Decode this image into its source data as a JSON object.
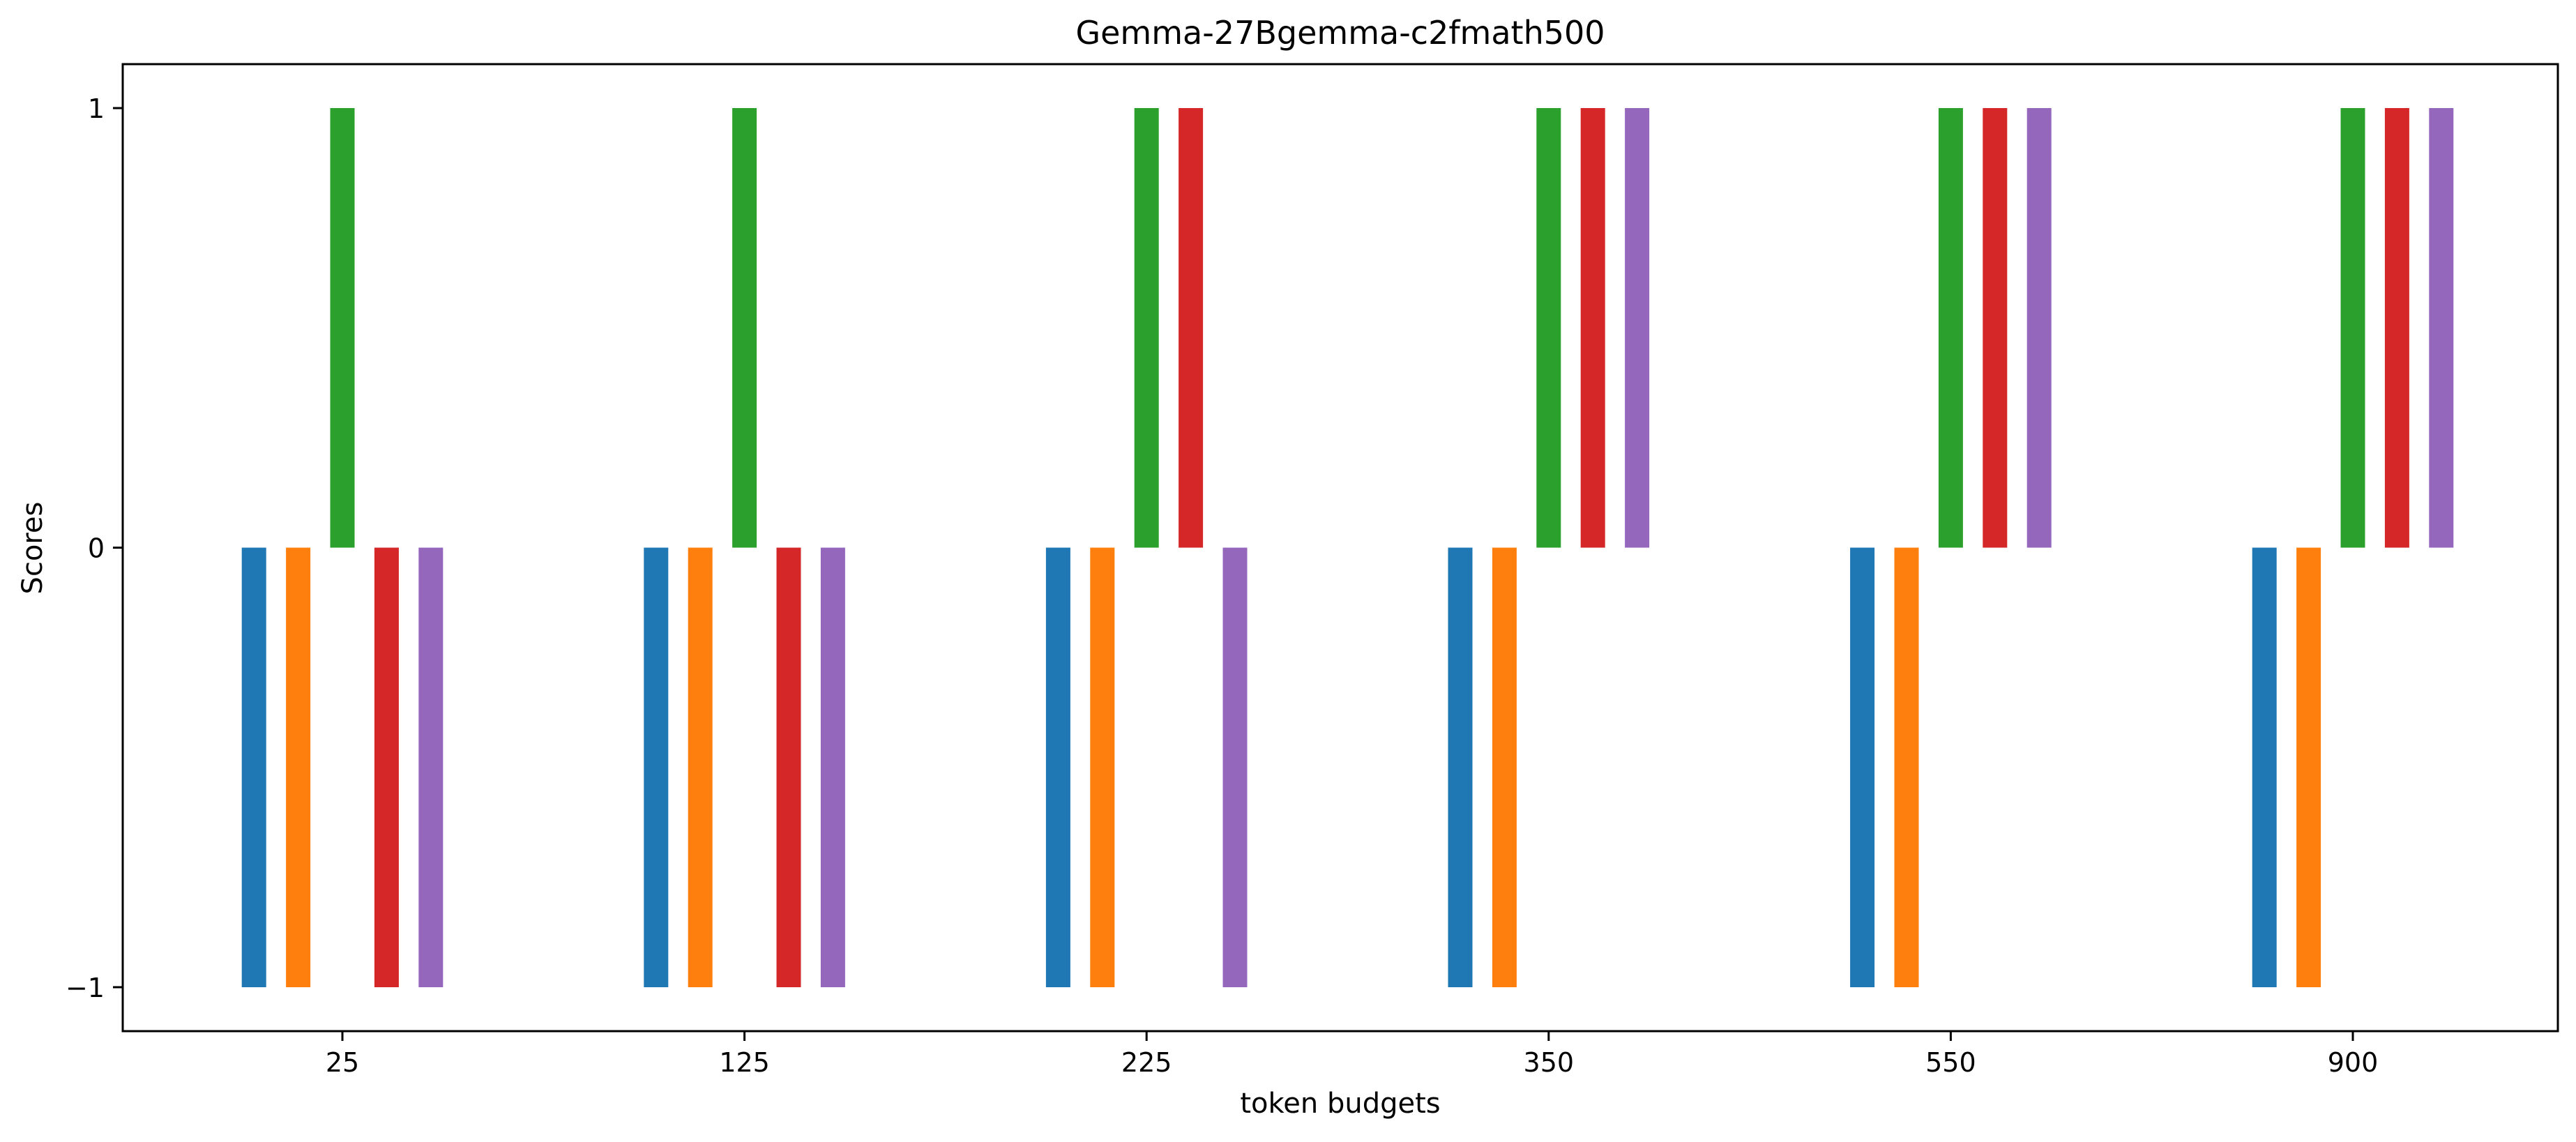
{
  "chart_data": {
    "type": "bar",
    "title": "Gemma-27Bgemma-c2fmath500",
    "xlabel": "token budgets",
    "ylabel": "Scores",
    "ylim": [
      -1.1,
      1.1
    ],
    "yticks": [
      -1,
      0,
      1
    ],
    "ytick_labels": [
      "−1",
      "0",
      "1"
    ],
    "categories": [
      "25",
      "125",
      "225",
      "350",
      "550",
      "900"
    ],
    "grid": false,
    "legend": "none",
    "series": [
      {
        "color": "#1f77b4",
        "values": [
          -1,
          -1,
          -1,
          -1,
          -1,
          -1
        ]
      },
      {
        "color": "#ff7f0e",
        "values": [
          -1,
          -1,
          -1,
          -1,
          -1,
          -1
        ]
      },
      {
        "color": "#2ca02c",
        "values": [
          1,
          1,
          1,
          1,
          1,
          1
        ]
      },
      {
        "color": "#d62728",
        "values": [
          -1,
          -1,
          1,
          1,
          1,
          1
        ]
      },
      {
        "color": "#9467bd",
        "values": [
          -1,
          -1,
          -1,
          1,
          1,
          1
        ]
      }
    ]
  }
}
